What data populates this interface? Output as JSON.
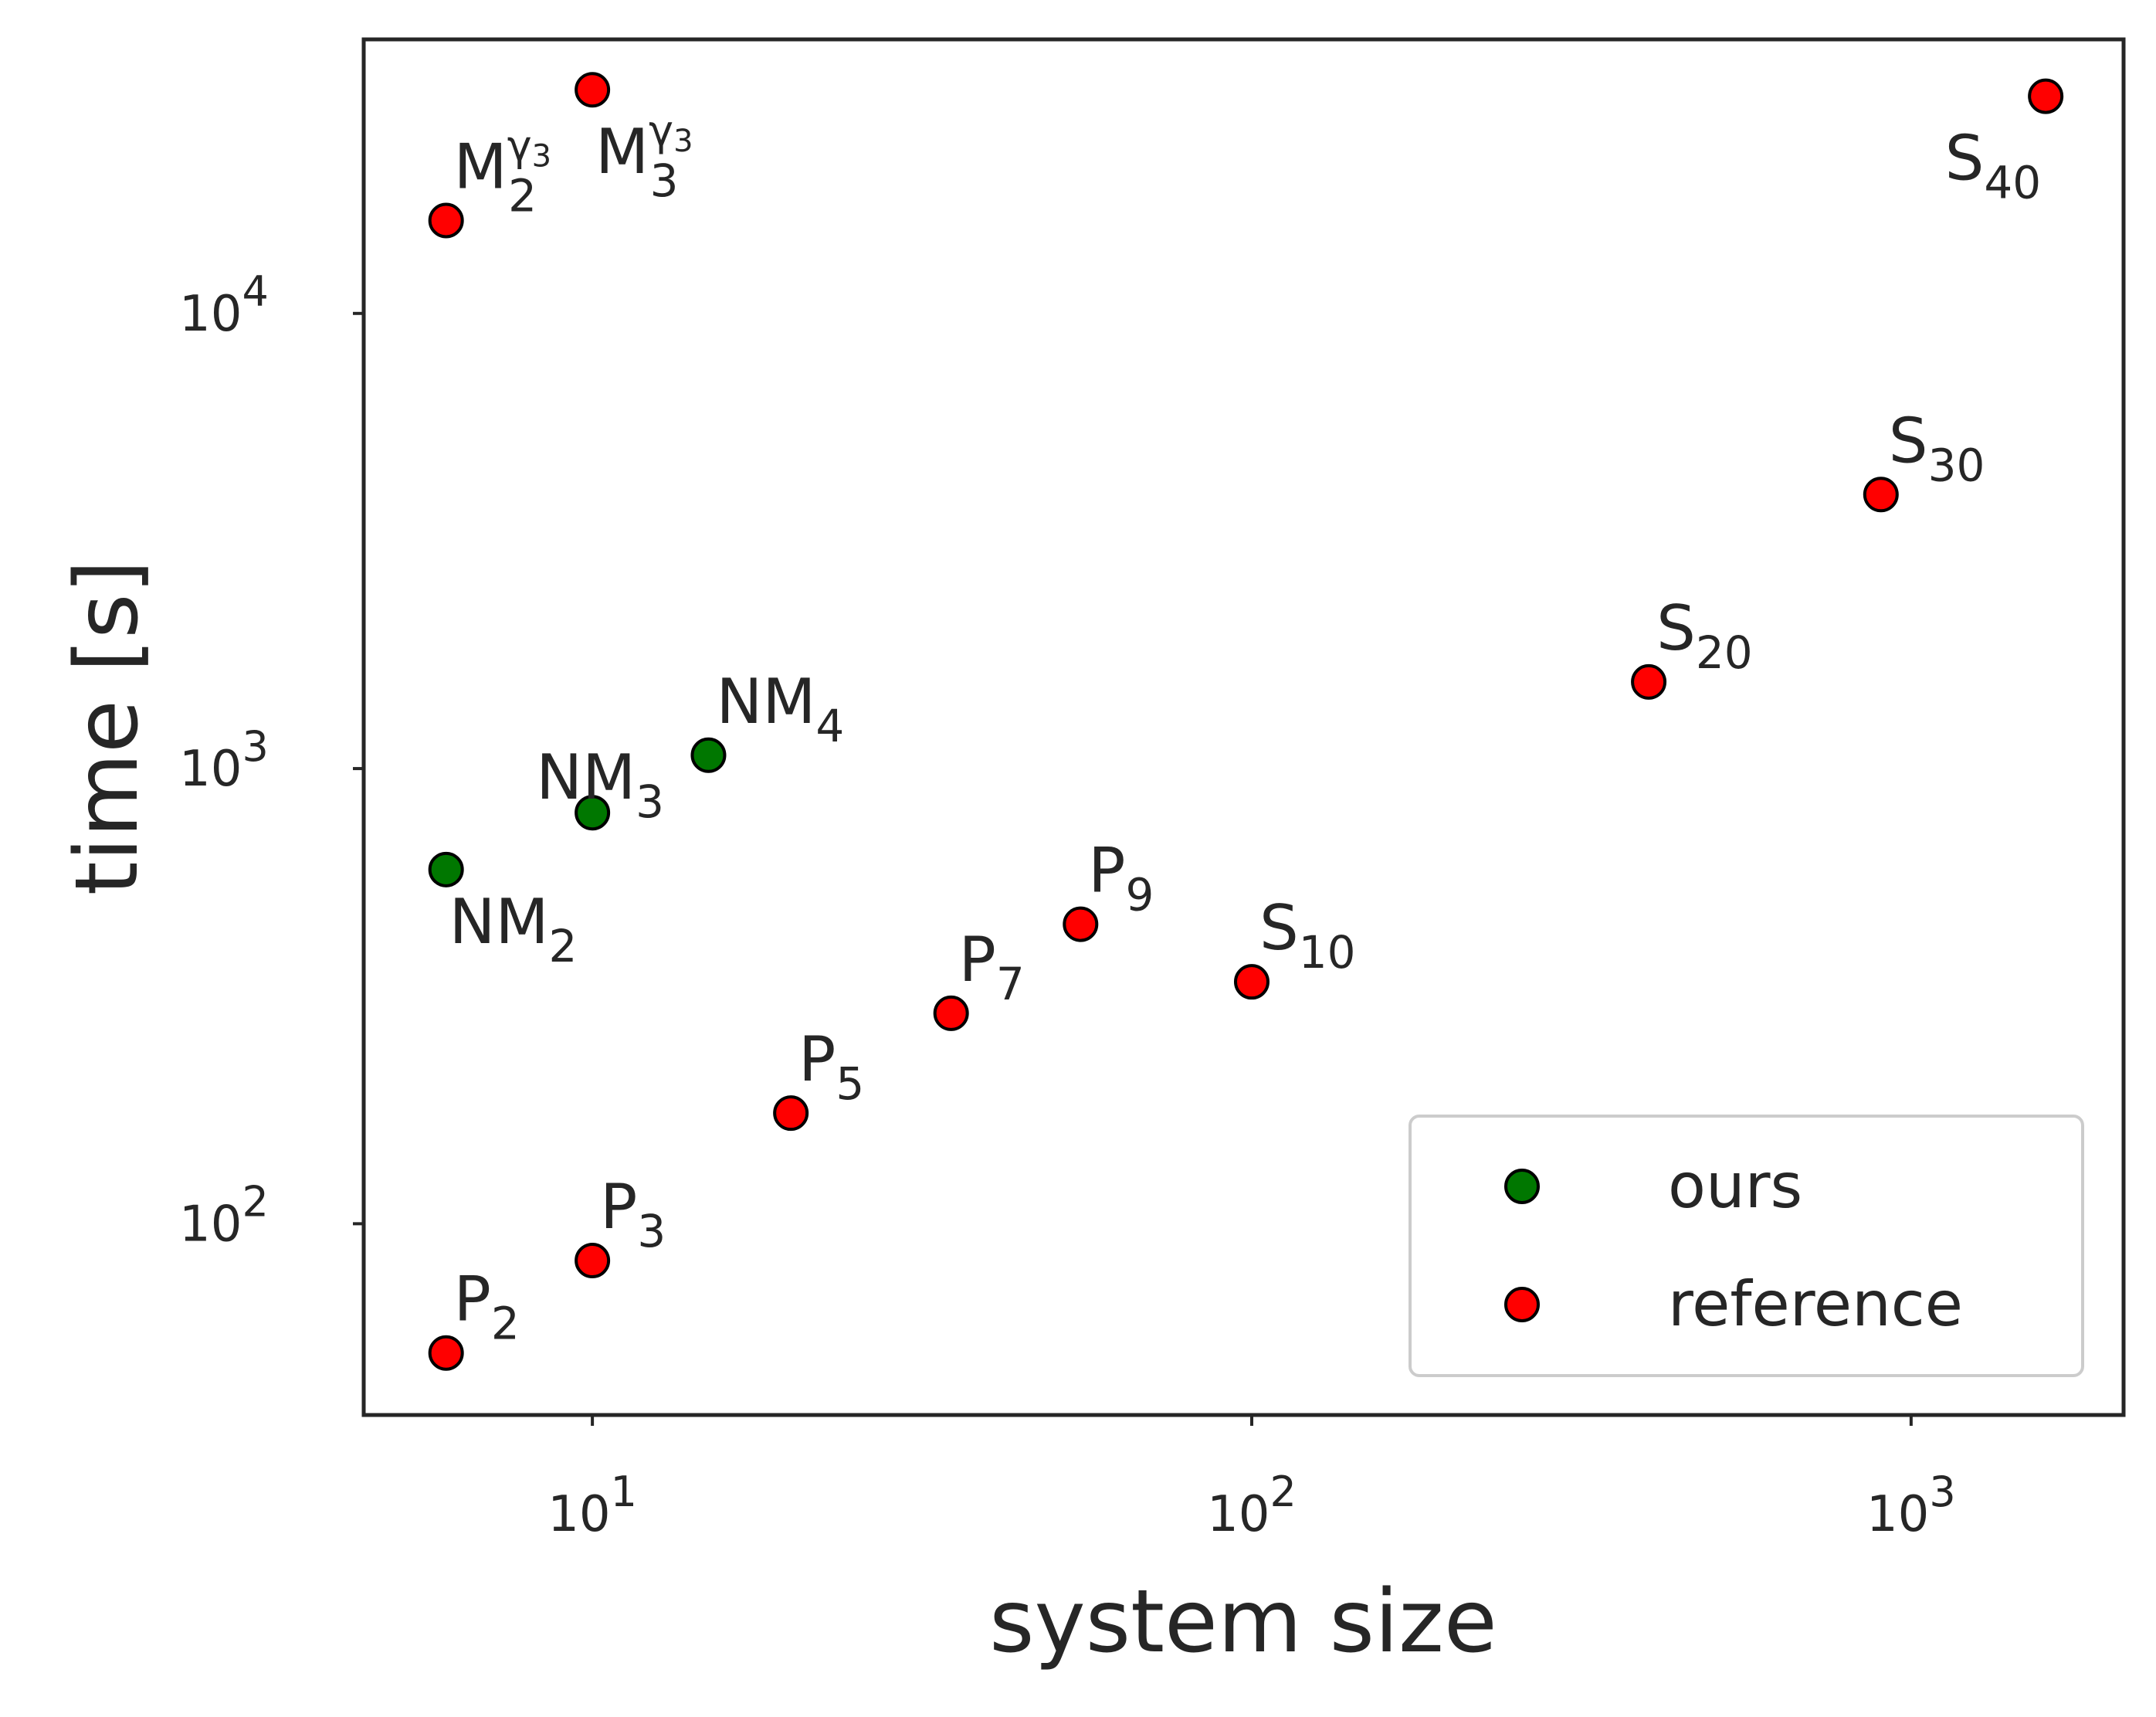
{
  "chart_data": {
    "type": "scatter",
    "xlabel": "system size",
    "ylabel": "time [s]",
    "xscale": "log",
    "yscale": "log",
    "xlim": [
      4.5,
      2100
    ],
    "ylim": [
      38,
      40000
    ],
    "grid": false,
    "legend_position": "bottom-right",
    "x_tick_labels": [
      {
        "value": 10,
        "base": "10",
        "exp": "1"
      },
      {
        "value": 100,
        "base": "10",
        "exp": "2"
      },
      {
        "value": 1000,
        "base": "10",
        "exp": "3"
      }
    ],
    "y_tick_labels": [
      {
        "value": 100,
        "base": "10",
        "exp": "2"
      },
      {
        "value": 1000,
        "base": "10",
        "exp": "3"
      },
      {
        "value": 10000,
        "base": "10",
        "exp": "4"
      }
    ],
    "series": [
      {
        "name": "ours",
        "color": "#007700",
        "points": [
          {
            "x": 6,
            "y": 600,
            "label": "NM",
            "sub": "2",
            "anchor": "below-right"
          },
          {
            "x": 10,
            "y": 800,
            "label": "NM",
            "sub": "3",
            "anchor": "above-center"
          },
          {
            "x": 15,
            "y": 1070,
            "label": "NM",
            "sub": "4",
            "anchor": "above-right"
          }
        ]
      },
      {
        "name": "reference",
        "color": "#ff0000",
        "points": [
          {
            "x": 6,
            "y": 52,
            "label": "P",
            "sub": "2",
            "anchor": "above-right"
          },
          {
            "x": 10,
            "y": 83,
            "label": "P",
            "sub": "3",
            "anchor": "above-right"
          },
          {
            "x": 20,
            "y": 175,
            "label": "P",
            "sub": "5",
            "anchor": "above-right"
          },
          {
            "x": 35,
            "y": 290,
            "label": "P",
            "sub": "7",
            "anchor": "above-right"
          },
          {
            "x": 55,
            "y": 455,
            "label": "P",
            "sub": "9",
            "anchor": "above-right"
          },
          {
            "x": 100,
            "y": 340,
            "label": "S",
            "sub": "10",
            "anchor": "above-right"
          },
          {
            "x": 400,
            "y": 1550,
            "label": "S",
            "sub": "20",
            "anchor": "above-right"
          },
          {
            "x": 900,
            "y": 4000,
            "label": "S",
            "sub": "30",
            "anchor": "above-right"
          },
          {
            "x": 1600,
            "y": 30000,
            "label": "S",
            "sub": "40",
            "anchor": "below-left"
          },
          {
            "x": 6,
            "y": 16000,
            "label": "M",
            "sub": "2",
            "sup": "γ",
            "sup_sub": "3",
            "anchor": "above-right"
          },
          {
            "x": 10,
            "y": 31000,
            "label": "M",
            "sub": "3",
            "sup": "γ",
            "sup_sub": "3",
            "anchor": "below-right"
          }
        ]
      }
    ]
  }
}
